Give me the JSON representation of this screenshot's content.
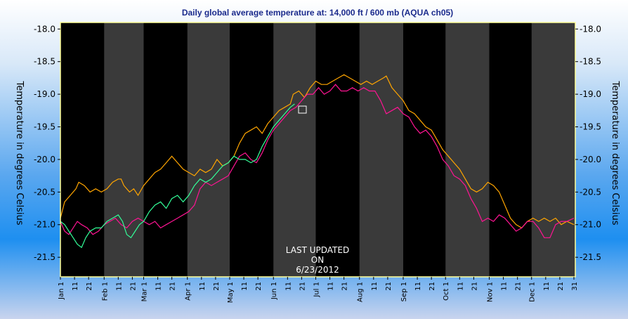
{
  "chart_data": {
    "type": "line",
    "title": "Daily global average temperature at: 14,000 ft / 600 mb (AQUA ch05)",
    "ylabel_left": "Temperature in degrees Celsius",
    "ylabel_right": "Temperature in degrees Celsius",
    "ylim": [
      -21.8,
      -17.9
    ],
    "y_ticks": [
      "-18.0",
      "-18.5",
      "-19.0",
      "-19.5",
      "-20.0",
      "-20.5",
      "-21.0",
      "-21.5"
    ],
    "x_ticks": [
      {
        "label": "Jan 1",
        "day": 1
      },
      {
        "label": "11",
        "day": 11
      },
      {
        "label": "21",
        "day": 21
      },
      {
        "label": "Feb 1",
        "day": 32
      },
      {
        "label": "11",
        "day": 42
      },
      {
        "label": "21",
        "day": 52
      },
      {
        "label": "Mar 1",
        "day": 60
      },
      {
        "label": "11",
        "day": 70
      },
      {
        "label": "21",
        "day": 80
      },
      {
        "label": "Apr 1",
        "day": 91
      },
      {
        "label": "11",
        "day": 101
      },
      {
        "label": "21",
        "day": 111
      },
      {
        "label": "May 1",
        "day": 121
      },
      {
        "label": "11",
        "day": 131
      },
      {
        "label": "21",
        "day": 141
      },
      {
        "label": "Jun 1",
        "day": 152
      },
      {
        "label": "11",
        "day": 162
      },
      {
        "label": "21",
        "day": 172
      },
      {
        "label": "Jul 1",
        "day": 182
      },
      {
        "label": "11",
        "day": 192
      },
      {
        "label": "21",
        "day": 202
      },
      {
        "label": "Aug 1",
        "day": 213
      },
      {
        "label": "11",
        "day": 223
      },
      {
        "label": "21",
        "day": 233
      },
      {
        "label": "Sep 1",
        "day": 244
      },
      {
        "label": "11",
        "day": 254
      },
      {
        "label": "21",
        "day": 264
      },
      {
        "label": "Oct 1",
        "day": 274
      },
      {
        "label": "11",
        "day": 284
      },
      {
        "label": "21",
        "day": 294
      },
      {
        "label": "Nov 1",
        "day": 305
      },
      {
        "label": "11",
        "day": 315
      },
      {
        "label": "21",
        "day": 325
      },
      {
        "label": "Dec 1",
        "day": 335
      },
      {
        "label": "11",
        "day": 345
      },
      {
        "label": "21",
        "day": 355
      },
      {
        "label": "31",
        "day": 365
      }
    ],
    "month_starts": [
      1,
      32,
      60,
      91,
      121,
      152,
      182,
      213,
      244,
      274,
      305,
      335,
      366
    ],
    "colors": {
      "background": "#000000",
      "band": "#3a3a3a",
      "frame": "#ffff99",
      "series_orange": "#ffa500",
      "series_magenta": "#ff1493",
      "series_green": "#33ff99"
    },
    "series": [
      {
        "color_key": "series_orange",
        "points": [
          [
            1,
            -20.9
          ],
          [
            4,
            -20.65
          ],
          [
            8,
            -20.55
          ],
          [
            12,
            -20.45
          ],
          [
            14,
            -20.35
          ],
          [
            18,
            -20.4
          ],
          [
            22,
            -20.5
          ],
          [
            26,
            -20.45
          ],
          [
            30,
            -20.5
          ],
          [
            34,
            -20.45
          ],
          [
            38,
            -20.35
          ],
          [
            42,
            -20.3
          ],
          [
            44,
            -20.3
          ],
          [
            46,
            -20.4
          ],
          [
            50,
            -20.5
          ],
          [
            53,
            -20.45
          ],
          [
            56,
            -20.55
          ],
          [
            60,
            -20.4
          ],
          [
            64,
            -20.3
          ],
          [
            68,
            -20.2
          ],
          [
            72,
            -20.15
          ],
          [
            76,
            -20.05
          ],
          [
            80,
            -19.95
          ],
          [
            84,
            -20.05
          ],
          [
            88,
            -20.15
          ],
          [
            92,
            -20.2
          ],
          [
            96,
            -20.25
          ],
          [
            100,
            -20.15
          ],
          [
            104,
            -20.2
          ],
          [
            108,
            -20.15
          ],
          [
            112,
            -20.0
          ],
          [
            116,
            -20.1
          ],
          [
            120,
            -20.05
          ],
          [
            124,
            -19.95
          ],
          [
            128,
            -19.75
          ],
          [
            132,
            -19.6
          ],
          [
            136,
            -19.55
          ],
          [
            140,
            -19.5
          ],
          [
            144,
            -19.6
          ],
          [
            148,
            -19.45
          ],
          [
            152,
            -19.35
          ],
          [
            156,
            -19.25
          ],
          [
            160,
            -19.2
          ],
          [
            164,
            -19.15
          ],
          [
            166,
            -19.0
          ],
          [
            170,
            -18.95
          ],
          [
            174,
            -19.05
          ],
          [
            178,
            -18.9
          ],
          [
            182,
            -18.8
          ],
          [
            186,
            -18.85
          ],
          [
            190,
            -18.85
          ],
          [
            194,
            -18.8
          ],
          [
            198,
            -18.75
          ],
          [
            202,
            -18.7
          ],
          [
            206,
            -18.75
          ],
          [
            210,
            -18.8
          ],
          [
            214,
            -18.85
          ],
          [
            218,
            -18.8
          ],
          [
            222,
            -18.85
          ],
          [
            226,
            -18.8
          ],
          [
            230,
            -18.75
          ],
          [
            232,
            -18.72
          ],
          [
            236,
            -18.9
          ],
          [
            240,
            -19.0
          ],
          [
            244,
            -19.1
          ],
          [
            248,
            -19.25
          ],
          [
            252,
            -19.3
          ],
          [
            256,
            -19.4
          ],
          [
            260,
            -19.5
          ],
          [
            264,
            -19.55
          ],
          [
            268,
            -19.7
          ],
          [
            272,
            -19.85
          ],
          [
            276,
            -19.95
          ],
          [
            280,
            -20.05
          ],
          [
            284,
            -20.15
          ],
          [
            288,
            -20.3
          ],
          [
            292,
            -20.45
          ],
          [
            296,
            -20.5
          ],
          [
            300,
            -20.45
          ],
          [
            304,
            -20.35
          ],
          [
            308,
            -20.4
          ],
          [
            312,
            -20.5
          ],
          [
            316,
            -20.7
          ],
          [
            320,
            -20.9
          ],
          [
            324,
            -21.0
          ],
          [
            328,
            -21.05
          ],
          [
            332,
            -20.95
          ],
          [
            336,
            -20.9
          ],
          [
            340,
            -20.95
          ],
          [
            344,
            -20.9
          ],
          [
            348,
            -20.95
          ],
          [
            352,
            -20.9
          ],
          [
            356,
            -21.0
          ],
          [
            360,
            -20.95
          ],
          [
            365,
            -21.0
          ]
        ]
      },
      {
        "color_key": "series_magenta",
        "points": [
          [
            1,
            -20.95
          ],
          [
            4,
            -21.1
          ],
          [
            7,
            -21.15
          ],
          [
            10,
            -21.05
          ],
          [
            13,
            -20.95
          ],
          [
            16,
            -21.0
          ],
          [
            20,
            -21.05
          ],
          [
            24,
            -21.15
          ],
          [
            28,
            -21.1
          ],
          [
            32,
            -21.0
          ],
          [
            36,
            -20.95
          ],
          [
            40,
            -20.9
          ],
          [
            44,
            -21.0
          ],
          [
            48,
            -21.05
          ],
          [
            52,
            -20.95
          ],
          [
            56,
            -20.9
          ],
          [
            60,
            -20.95
          ],
          [
            64,
            -21.0
          ],
          [
            68,
            -20.95
          ],
          [
            72,
            -21.05
          ],
          [
            76,
            -21.0
          ],
          [
            80,
            -20.95
          ],
          [
            84,
            -20.9
          ],
          [
            88,
            -20.85
          ],
          [
            92,
            -20.8
          ],
          [
            96,
            -20.7
          ],
          [
            100,
            -20.45
          ],
          [
            104,
            -20.35
          ],
          [
            108,
            -20.4
          ],
          [
            112,
            -20.35
          ],
          [
            116,
            -20.3
          ],
          [
            120,
            -20.25
          ],
          [
            124,
            -20.1
          ],
          [
            128,
            -19.95
          ],
          [
            132,
            -19.9
          ],
          [
            136,
            -20.0
          ],
          [
            140,
            -20.05
          ],
          [
            144,
            -19.9
          ],
          [
            148,
            -19.7
          ],
          [
            152,
            -19.55
          ],
          [
            156,
            -19.45
          ],
          [
            160,
            -19.35
          ],
          [
            164,
            -19.25
          ],
          [
            168,
            -19.2
          ],
          [
            172,
            -19.1
          ],
          [
            176,
            -19.0
          ],
          [
            180,
            -19.0
          ],
          [
            184,
            -18.9
          ],
          [
            188,
            -19.0
          ],
          [
            192,
            -18.95
          ],
          [
            196,
            -18.85
          ],
          [
            200,
            -18.95
          ],
          [
            204,
            -18.95
          ],
          [
            208,
            -18.9
          ],
          [
            212,
            -18.95
          ],
          [
            216,
            -18.9
          ],
          [
            220,
            -18.95
          ],
          [
            224,
            -18.95
          ],
          [
            228,
            -19.1
          ],
          [
            232,
            -19.3
          ],
          [
            236,
            -19.25
          ],
          [
            240,
            -19.2
          ],
          [
            244,
            -19.3
          ],
          [
            248,
            -19.35
          ],
          [
            252,
            -19.5
          ],
          [
            256,
            -19.6
          ],
          [
            260,
            -19.55
          ],
          [
            264,
            -19.65
          ],
          [
            268,
            -19.8
          ],
          [
            272,
            -20.0
          ],
          [
            276,
            -20.1
          ],
          [
            280,
            -20.25
          ],
          [
            284,
            -20.3
          ],
          [
            288,
            -20.4
          ],
          [
            292,
            -20.6
          ],
          [
            296,
            -20.75
          ],
          [
            300,
            -20.95
          ],
          [
            304,
            -20.9
          ],
          [
            308,
            -20.95
          ],
          [
            312,
            -20.85
          ],
          [
            316,
            -20.9
          ],
          [
            320,
            -21.0
          ],
          [
            324,
            -21.1
          ],
          [
            328,
            -21.05
          ],
          [
            332,
            -20.95
          ],
          [
            336,
            -20.95
          ],
          [
            340,
            -21.05
          ],
          [
            344,
            -21.2
          ],
          [
            348,
            -21.2
          ],
          [
            352,
            -21.0
          ],
          [
            356,
            -20.95
          ],
          [
            360,
            -20.95
          ],
          [
            365,
            -20.9
          ]
        ]
      },
      {
        "color_key": "series_green",
        "points": [
          [
            1,
            -20.95
          ],
          [
            4,
            -21.0
          ],
          [
            7,
            -21.1
          ],
          [
            10,
            -21.2
          ],
          [
            13,
            -21.3
          ],
          [
            16,
            -21.35
          ],
          [
            19,
            -21.2
          ],
          [
            22,
            -21.1
          ],
          [
            26,
            -21.05
          ],
          [
            30,
            -21.05
          ],
          [
            34,
            -20.95
          ],
          [
            38,
            -20.9
          ],
          [
            42,
            -20.85
          ],
          [
            45,
            -20.95
          ],
          [
            48,
            -21.15
          ],
          [
            51,
            -21.2
          ],
          [
            54,
            -21.1
          ],
          [
            57,
            -21.0
          ],
          [
            60,
            -20.95
          ],
          [
            64,
            -20.8
          ],
          [
            68,
            -20.7
          ],
          [
            72,
            -20.65
          ],
          [
            76,
            -20.75
          ],
          [
            80,
            -20.6
          ],
          [
            84,
            -20.55
          ],
          [
            88,
            -20.65
          ],
          [
            92,
            -20.55
          ],
          [
            96,
            -20.4
          ],
          [
            100,
            -20.3
          ],
          [
            104,
            -20.35
          ],
          [
            108,
            -20.3
          ],
          [
            112,
            -20.2
          ],
          [
            116,
            -20.1
          ],
          [
            120,
            -20.05
          ],
          [
            124,
            -19.95
          ],
          [
            128,
            -20.0
          ],
          [
            132,
            -20.0
          ],
          [
            136,
            -20.05
          ],
          [
            140,
            -20.0
          ],
          [
            144,
            -19.8
          ],
          [
            148,
            -19.65
          ],
          [
            152,
            -19.5
          ],
          [
            156,
            -19.4
          ],
          [
            160,
            -19.3
          ],
          [
            164,
            -19.2
          ],
          [
            167,
            -19.15
          ]
        ]
      }
    ],
    "annotation": [
      "LAST UPDATED",
      "ON",
      "6/23/2012"
    ]
  }
}
